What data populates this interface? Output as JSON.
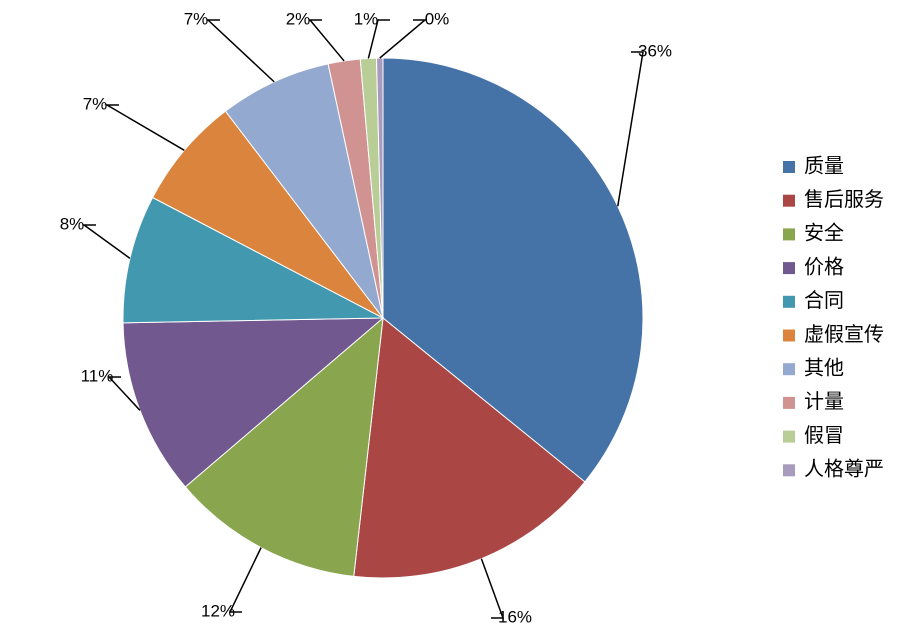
{
  "chart_data": {
    "type": "pie",
    "categories": [
      "质量",
      "售后服务",
      "安全",
      "价格",
      "合同",
      "虚假宣传",
      "其他",
      "计量",
      "假冒",
      "人格尊严"
    ],
    "values": [
      36,
      16,
      12,
      11,
      8,
      7,
      7,
      2,
      1,
      0.4
    ],
    "value_labels": [
      "36%",
      "16%",
      "12%",
      "11%",
      "8%",
      "7%",
      "7%",
      "2%",
      "1%",
      "0%"
    ],
    "colors": [
      "#4572a7",
      "#aa4643",
      "#89a54e",
      "#71588f",
      "#4198af",
      "#db843d",
      "#93a9cf",
      "#d19392",
      "#b9cd96",
      "#a99bbd"
    ],
    "legend": "right"
  }
}
